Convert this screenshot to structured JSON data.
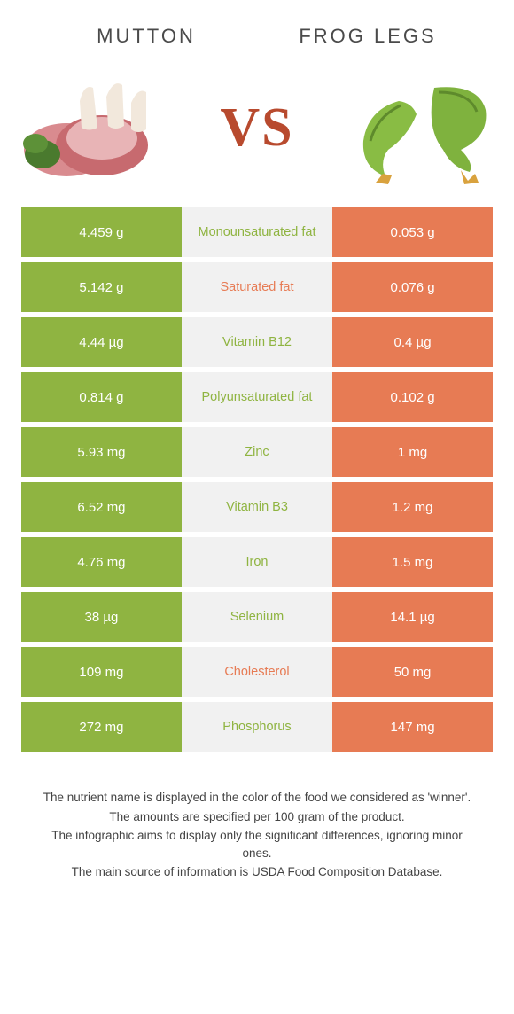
{
  "header": {
    "left_title": "Mutton",
    "right_title": "Frog legs",
    "vs_label": "VS"
  },
  "colors": {
    "mutton": "#8fb441",
    "frog": "#e77b54",
    "mid_bg": "#f1f1f1",
    "text_white": "#ffffff"
  },
  "table": {
    "rows": [
      {
        "left": "4.459 g",
        "label": "Monounsaturated fat",
        "right": "0.053 g",
        "winner": "left"
      },
      {
        "left": "5.142 g",
        "label": "Saturated fat",
        "right": "0.076 g",
        "winner": "right"
      },
      {
        "left": "4.44 µg",
        "label": "Vitamin B12",
        "right": "0.4 µg",
        "winner": "left"
      },
      {
        "left": "0.814 g",
        "label": "Polyunsaturated fat",
        "right": "0.102 g",
        "winner": "left"
      },
      {
        "left": "5.93 mg",
        "label": "Zinc",
        "right": "1 mg",
        "winner": "left"
      },
      {
        "left": "6.52 mg",
        "label": "Vitamin B3",
        "right": "1.2 mg",
        "winner": "left"
      },
      {
        "left": "4.76 mg",
        "label": "Iron",
        "right": "1.5 mg",
        "winner": "left"
      },
      {
        "left": "38 µg",
        "label": "Selenium",
        "right": "14.1 µg",
        "winner": "left"
      },
      {
        "left": "109 mg",
        "label": "Cholesterol",
        "right": "50 mg",
        "winner": "right"
      },
      {
        "left": "272 mg",
        "label": "Phosphorus",
        "right": "147 mg",
        "winner": "left"
      }
    ]
  },
  "footer": {
    "line1": "The nutrient name is displayed in the color of the food we considered as 'winner'.",
    "line2": "The amounts are specified per 100 gram of the product.",
    "line3": "The infographic aims to display only the significant differences, ignoring minor ones.",
    "line4": "The main source of information is USDA Food Composition Database."
  }
}
